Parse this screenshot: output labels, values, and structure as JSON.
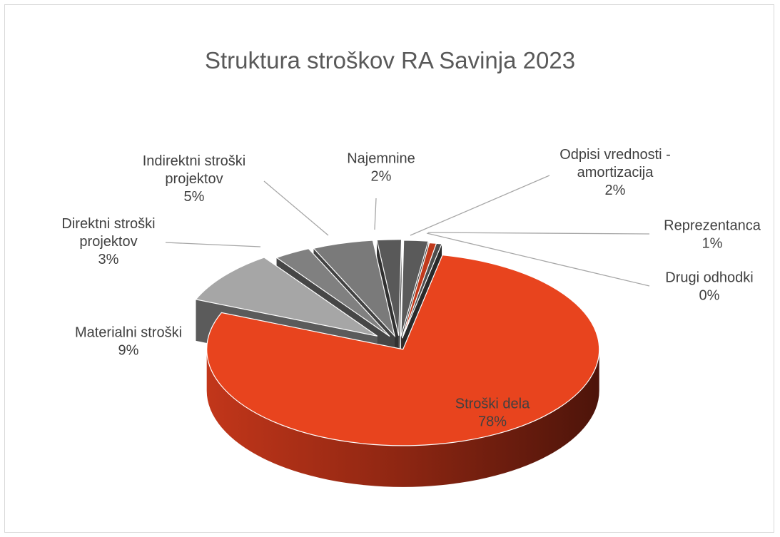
{
  "chart_data": {
    "type": "pie",
    "style": "3d-exploded",
    "title": "Struktura stroškov RA Savinja 2023",
    "slices": [
      {
        "label": "Stroški dela",
        "value": 78,
        "value_label": "78%",
        "color": "#e8441e"
      },
      {
        "label": "Materialni stroški",
        "value": 9,
        "value_label": "9%",
        "color": "#a6a6a6"
      },
      {
        "label": "Direktni stroški projektov",
        "value": 3,
        "value_label": "3%",
        "color": "#808080"
      },
      {
        "label": "Indirektni stroški projektov",
        "value": 5,
        "value_label": "5%",
        "color": "#7a7a7a"
      },
      {
        "label": "Najemnine",
        "value": 2,
        "value_label": "2%",
        "color": "#595959"
      },
      {
        "label": "Odpisi vrednosti - amortizacija",
        "value": 2,
        "value_label": "2%",
        "color": "#5a5a5a"
      },
      {
        "label": "Reprezentanca",
        "value": 1,
        "value_label": "1%",
        "color": "#c0391b"
      },
      {
        "label": "Drugi odhodki",
        "value": 0,
        "value_label": "0%",
        "color": "#4d4d4d"
      }
    ],
    "legend": "none"
  }
}
